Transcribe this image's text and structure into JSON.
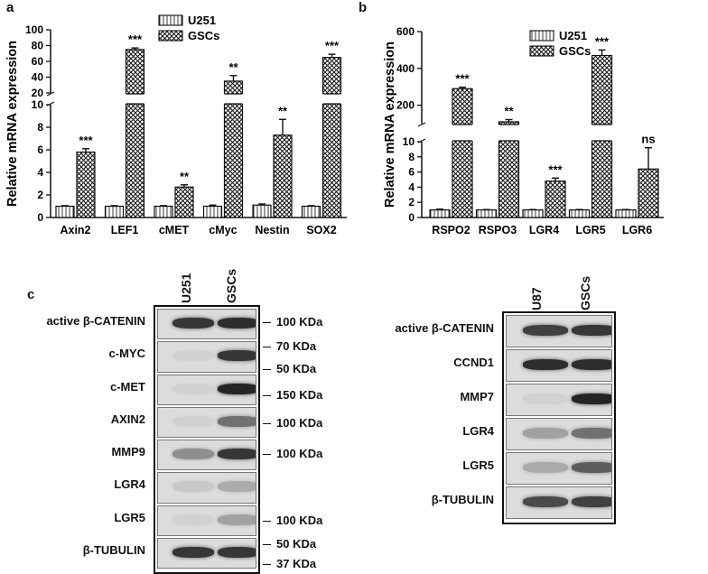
{
  "panel_a": {
    "letter": "a",
    "chart_data": {
      "type": "bar",
      "ylabel": "Relative mRNA expression",
      "categories": [
        "Axin2",
        "LEF1",
        "cMET",
        "cMyc",
        "Nestin",
        "SOX2"
      ],
      "legend": {
        "position": "top-right",
        "entries": [
          "U251",
          "GSCs"
        ]
      },
      "y_axis_broken": true,
      "lower_ylim": [
        0,
        10
      ],
      "lower_ticks": [
        "0",
        "2",
        "4",
        "6",
        "8",
        "10"
      ],
      "upper_ylim": [
        20,
        100
      ],
      "upper_ticks": [
        "20",
        "40",
        "60",
        "80",
        "100"
      ],
      "series": [
        {
          "name": "U251",
          "values": [
            1,
            1,
            1,
            1,
            1.1,
            1
          ],
          "errors": [
            0.05,
            0.05,
            0.05,
            0.1,
            0.1,
            0.05
          ]
        },
        {
          "name": "GSCs",
          "values": [
            5.8,
            75,
            2.7,
            35,
            7.3,
            65
          ],
          "errors": [
            0.3,
            2,
            0.2,
            7,
            1.4,
            4
          ]
        }
      ],
      "significance": [
        "***",
        "***",
        "**",
        "**",
        "**",
        "***"
      ]
    }
  },
  "panel_b": {
    "letter": "b",
    "chart_data": {
      "type": "bar",
      "ylabel": "Relative mRNA expression",
      "categories": [
        "RSPO2",
        "RSPO3",
        "LGR4",
        "LGR5",
        "LGR6"
      ],
      "legend": {
        "position": "top-center",
        "entries": [
          "U251",
          "GSCs"
        ]
      },
      "y_axis_broken": true,
      "lower_ylim": [
        0,
        10
      ],
      "lower_ticks": [
        "0",
        "2",
        "4",
        "6",
        "8",
        "10"
      ],
      "upper_ylim": [
        100,
        600
      ],
      "upper_ticks": [
        "200",
        "400",
        "600"
      ],
      "series": [
        {
          "name": "U251",
          "values": [
            1,
            1,
            1,
            1,
            1
          ],
          "errors": [
            0.1,
            0.05,
            0.05,
            0.05,
            0.05
          ]
        },
        {
          "name": "GSCs",
          "values": [
            290,
            110,
            4.8,
            470,
            6.4
          ],
          "errors": [
            8,
            12,
            0.4,
            30,
            2.8
          ]
        }
      ],
      "significance": [
        "***",
        "**",
        "***",
        "***",
        "ns"
      ]
    }
  },
  "panel_c": {
    "letter": "c",
    "left_blot": {
      "lanes": [
        "U251",
        "GSCs"
      ],
      "rows": [
        {
          "protein": "active β-CATENIN",
          "intensity": [
            0.85,
            0.9
          ]
        },
        {
          "protein": "c-MYC",
          "intensity": [
            0.05,
            0.85
          ]
        },
        {
          "protein": "c-MET",
          "intensity": [
            0.05,
            0.95
          ]
        },
        {
          "protein": "AXIN2",
          "intensity": [
            0.05,
            0.55
          ]
        },
        {
          "protein": "MMP9",
          "intensity": [
            0.4,
            0.85
          ]
        },
        {
          "protein": "LGR4",
          "intensity": [
            0.1,
            0.25
          ]
        },
        {
          "protein": "LGR5",
          "intensity": [
            0.05,
            0.3
          ]
        },
        {
          "protein": "β-TUBULIN",
          "intensity": [
            0.85,
            0.85
          ]
        }
      ],
      "markers": [
        "100 KDa",
        "70 KDa",
        "50 KDa",
        "150 KDa",
        "100 KDa",
        "100 KDa",
        "100 KDa",
        "50 KDa",
        "37 KDa"
      ]
    },
    "right_blot": {
      "lanes": [
        "U87",
        "GSCs"
      ],
      "rows": [
        {
          "protein": "active β-CATENIN",
          "intensity": [
            0.8,
            0.85
          ]
        },
        {
          "protein": "CCND1",
          "intensity": [
            0.9,
            0.9
          ]
        },
        {
          "protein": "MMP7",
          "intensity": [
            0.05,
            0.95
          ]
        },
        {
          "protein": "LGR4",
          "intensity": [
            0.3,
            0.55
          ]
        },
        {
          "protein": "LGR5",
          "intensity": [
            0.25,
            0.65
          ]
        },
        {
          "protein": "β-TUBULIN",
          "intensity": [
            0.75,
            0.8
          ]
        }
      ]
    }
  }
}
